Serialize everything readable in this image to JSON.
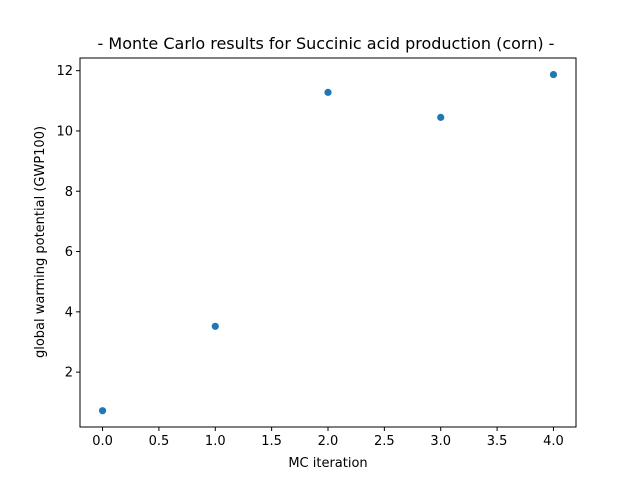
{
  "chart_data": {
    "type": "scatter",
    "title": "- Monte Carlo results for Succinic acid production (corn) -",
    "xlabel": "MC iteration",
    "ylabel": "global warming potential (GWP100)",
    "x": [
      0,
      1,
      2,
      3,
      4
    ],
    "y": [
      0.72,
      3.52,
      11.28,
      10.45,
      11.87
    ],
    "xlim": [
      -0.2,
      4.2
    ],
    "ylim": [
      0.18,
      12.42
    ],
    "xticks": [
      0.0,
      0.5,
      1.0,
      1.5,
      2.0,
      2.5,
      3.0,
      3.5,
      4.0
    ],
    "xtick_labels": [
      "0.0",
      "0.5",
      "1.0",
      "1.5",
      "2.0",
      "2.5",
      "3.0",
      "3.5",
      "4.0"
    ],
    "yticks": [
      2,
      4,
      6,
      8,
      10,
      12
    ],
    "ytick_labels": [
      "2",
      "4",
      "6",
      "8",
      "10",
      "12"
    ],
    "grid": false,
    "marker_color": "#1f77b4"
  }
}
